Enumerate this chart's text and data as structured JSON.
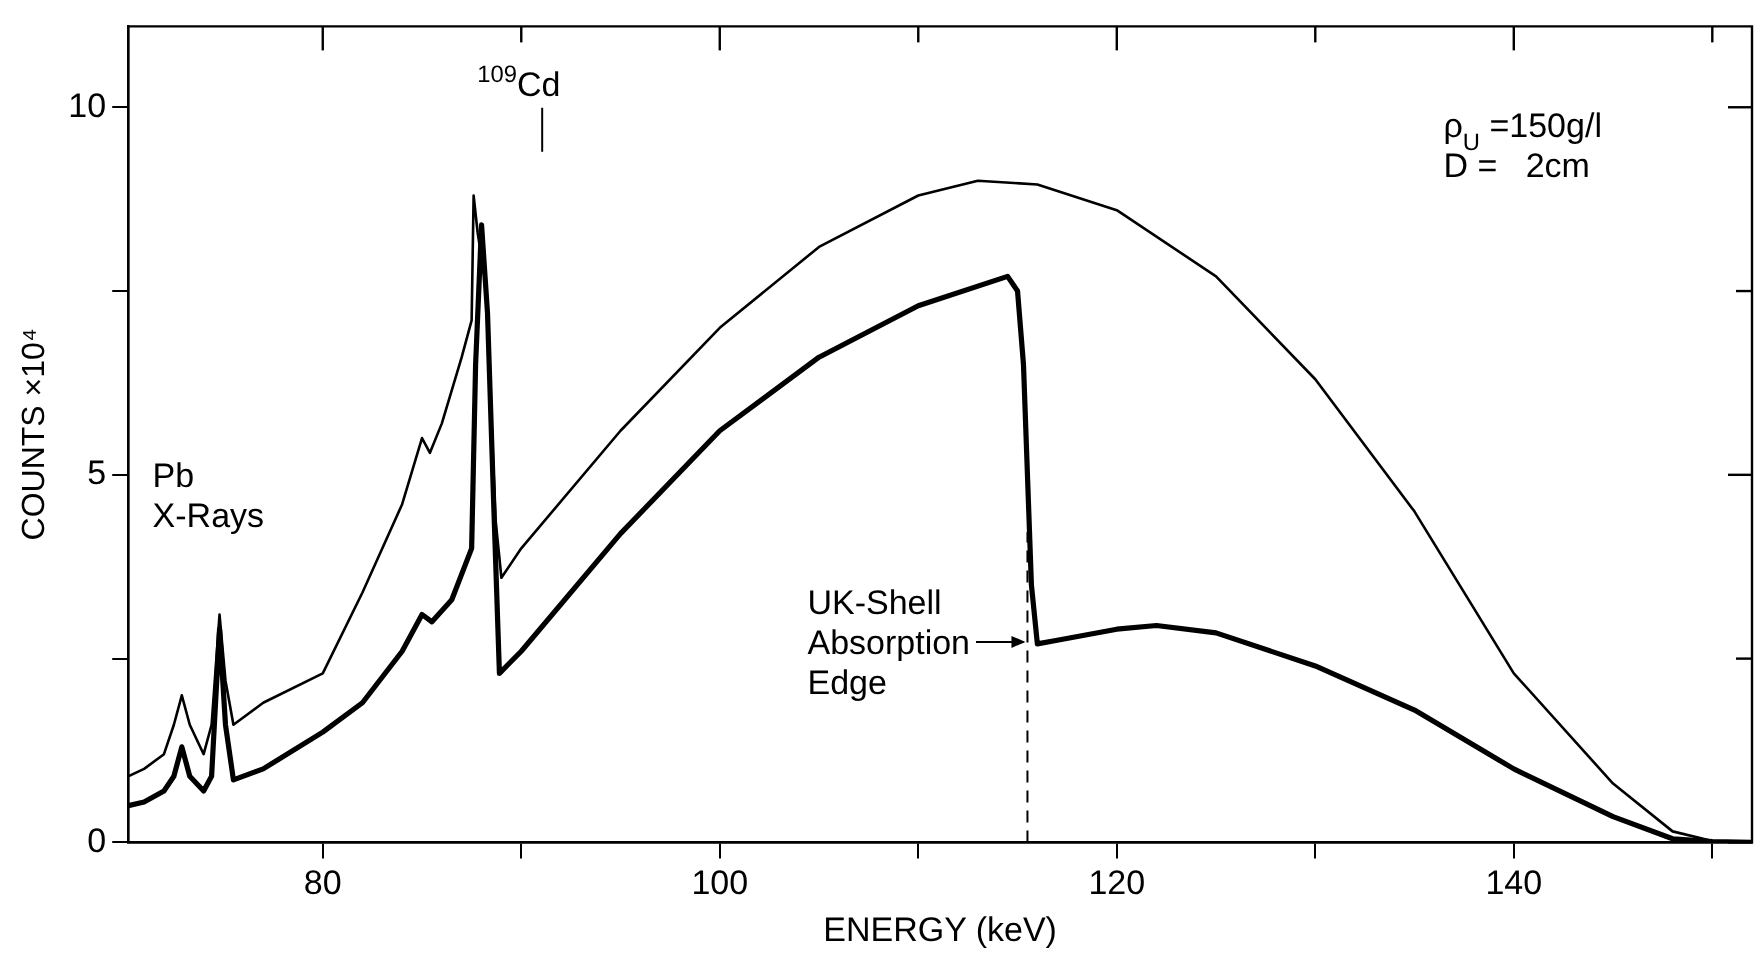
{
  "chart_data": {
    "type": "line",
    "xlabel": "ENERGY (keV)",
    "ylabel": "COUNTS ×10⁴",
    "xlim": [
      70.2,
      152
    ],
    "ylim": [
      0,
      11.1
    ],
    "xticks": [
      80,
      {
        "value": 90,
        "label": null
      },
      100,
      {
        "value": 110,
        "label": null
      },
      120,
      {
        "value": 130,
        "label": null
      },
      140,
      {
        "value": 150,
        "label": null
      }
    ],
    "yticks": [
      0,
      {
        "value": 2.5,
        "label": null
      },
      5,
      {
        "value": 7.5,
        "label": null
      },
      10
    ],
    "grid": false,
    "legend": false,
    "marker": "none",
    "line_style": "solid",
    "series": [
      {
        "color": "#000000",
        "x": [
          70.2,
          71,
          72,
          72.5,
          72.9,
          73.3,
          74,
          74.4,
          74.8,
          75.1,
          75.5,
          77,
          80,
          82,
          84,
          85,
          85.4,
          86,
          87,
          87.5,
          87.6,
          87.8,
          88.2,
          88.5,
          88.7,
          89,
          90,
          95,
          100,
          105,
          110,
          113,
          116,
          120,
          125,
          130,
          135,
          140,
          145,
          148,
          150,
          152
        ],
        "values": [
          0.9,
          1.0,
          1.2,
          1.6,
          2.0,
          1.6,
          1.2,
          1.6,
          3.1,
          2.2,
          1.6,
          1.9,
          2.3,
          3.4,
          4.6,
          5.5,
          5.3,
          5.7,
          6.6,
          7.1,
          8.8,
          8.3,
          7.6,
          5.75,
          4.4,
          3.6,
          4.0,
          5.6,
          7.0,
          8.1,
          8.8,
          9.0,
          8.95,
          8.6,
          7.7,
          6.3,
          4.5,
          2.3,
          0.8,
          0.15,
          0.02,
          0
        ]
      },
      {
        "color": "#000000",
        "x": [
          70.2,
          71,
          72,
          72.5,
          72.9,
          73.3,
          74,
          74.4,
          74.8,
          75.1,
          75.5,
          77,
          80,
          82,
          84,
          85,
          85.5,
          86.5,
          87.5,
          87.7,
          88,
          88.3,
          88.6,
          88.9,
          90,
          95,
          100,
          105,
          110,
          114.5,
          115,
          115.3,
          115.5,
          115.7,
          116,
          117,
          120,
          122,
          125,
          130,
          135,
          140,
          145,
          148,
          150,
          152
        ],
        "values": [
          0.5,
          0.55,
          0.7,
          0.9,
          1.3,
          0.9,
          0.7,
          0.9,
          2.9,
          1.6,
          0.85,
          1.0,
          1.5,
          1.9,
          2.6,
          3.1,
          3.0,
          3.3,
          4.0,
          6.5,
          8.4,
          7.2,
          4.7,
          2.3,
          2.6,
          4.2,
          5.6,
          6.6,
          7.3,
          7.7,
          7.5,
          6.5,
          5.0,
          3.5,
          2.7,
          2.75,
          2.9,
          2.95,
          2.85,
          2.4,
          1.8,
          1.0,
          0.35,
          0.05,
          0.01,
          0
        ]
      }
    ],
    "ref_lines": [
      {
        "axis": "x",
        "value": 115.5,
        "label": "UK-Shell\nAbsorption\nEdge",
        "line_style": "dashed",
        "color": "#000000"
      }
    ],
    "annotations": [
      "$^{109}$Cd",
      "Pb\nX-Rays",
      "ρ$_{U}$ =150g/l",
      "D =   2cm"
    ]
  }
}
